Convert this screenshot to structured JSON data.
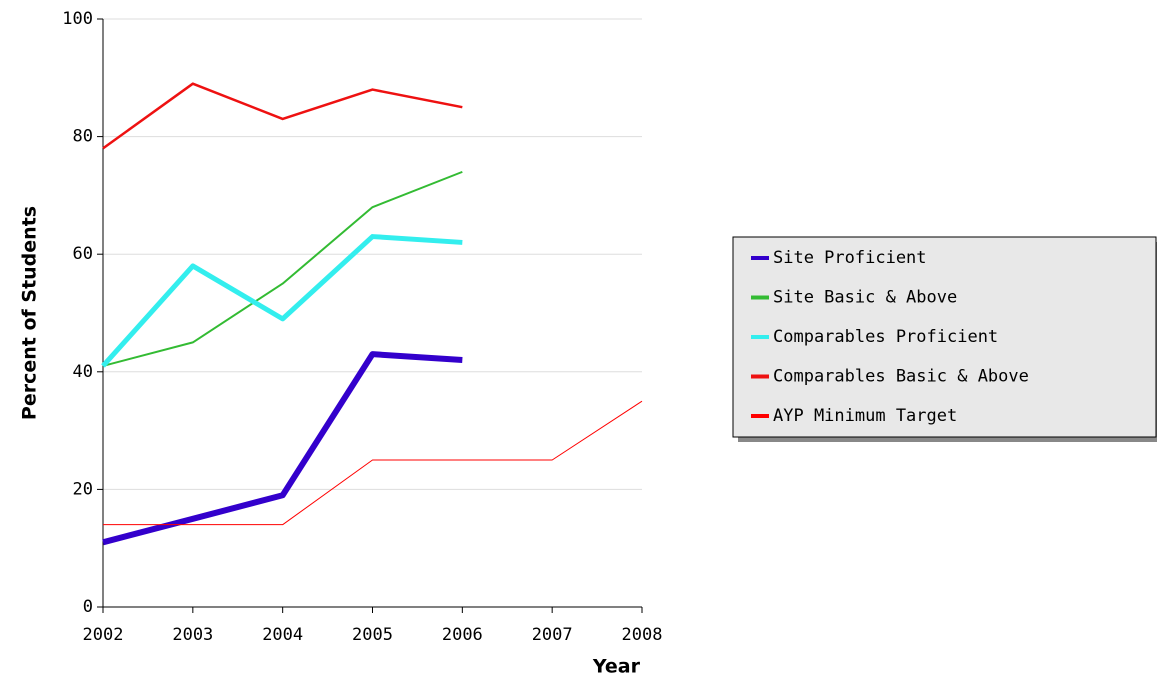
{
  "chart_data": {
    "type": "line",
    "xlabel": "Year",
    "ylabel": "Percent of Students",
    "x": [
      2002,
      2003,
      2004,
      2005,
      2006,
      2007,
      2008
    ],
    "xlim": [
      2002,
      2008
    ],
    "xticks": [
      2002,
      2003,
      2004,
      2005,
      2006,
      2007,
      2008
    ],
    "ylim": [
      0,
      100
    ],
    "yticks": [
      0,
      20,
      40,
      60,
      80,
      100
    ],
    "grid": true,
    "legend": "right",
    "series": [
      {
        "name": "Site Proficient",
        "color": "#3300cc",
        "line_width": 6,
        "values": [
          11,
          15,
          19,
          43,
          42,
          null,
          null
        ]
      },
      {
        "name": "Site Basic & Above",
        "color": "#33bb33",
        "line_width": 2,
        "values": [
          41,
          45,
          55,
          68,
          74,
          null,
          null
        ]
      },
      {
        "name": "Comparables Proficient",
        "color": "#33eeee",
        "line_width": 5,
        "values": [
          41,
          58,
          49,
          63,
          62,
          null,
          null
        ]
      },
      {
        "name": "Comparables Basic & Above",
        "color": "#ee1111",
        "line_width": 2.5,
        "values": [
          78,
          89,
          83,
          88,
          85,
          null,
          null
        ]
      },
      {
        "name": "AYP Minimum Target",
        "color": "#ff0000",
        "line_width": 1,
        "values": [
          14,
          14,
          14,
          25,
          25,
          25,
          35
        ]
      }
    ]
  }
}
